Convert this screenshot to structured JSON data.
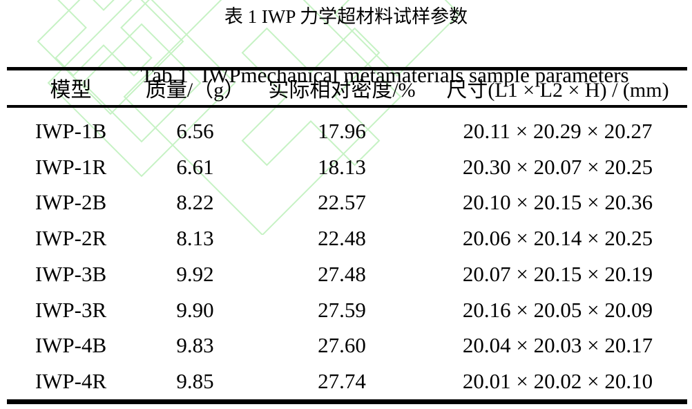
{
  "captions": {
    "zh": "表 1 IWP 力学超材料试样参数",
    "en_label": "Tab.1",
    "en_text": "IWPmechanical metamaterials sample parameters"
  },
  "table": {
    "columns": [
      "模型",
      "质量/（g）",
      "实际相对密度/%",
      "尺寸(L1 × L2 × H) / (mm)"
    ],
    "rows": [
      [
        "IWP-1B",
        "6.56",
        "17.96",
        "20.11 × 20.29 × 20.27"
      ],
      [
        "IWP-1R",
        "6.61",
        "18.13",
        "20.30 × 20.07 × 20.25"
      ],
      [
        "IWP-2B",
        "8.22",
        "22.57",
        "20.10 × 20.15 × 20.36"
      ],
      [
        "IWP-2R",
        "8.13",
        "22.48",
        "20.06 × 20.14 × 20.25"
      ],
      [
        "IWP-3B",
        "9.92",
        "27.48",
        "20.07 × 20.15 × 20.19"
      ],
      [
        "IWP-3R",
        "9.90",
        "27.59",
        "20.16 × 20.05 × 20.09"
      ],
      [
        "IWP-4B",
        "9.83",
        "27.60",
        "20.04 × 20.03 × 20.17"
      ],
      [
        "IWP-4R",
        "9.85",
        "27.74",
        "20.01 × 20.02 × 20.10"
      ]
    ]
  },
  "colors": {
    "background": "#ffffff",
    "text": "#000000",
    "rule": "#000000",
    "watermark_green": "#c6f2c4"
  }
}
